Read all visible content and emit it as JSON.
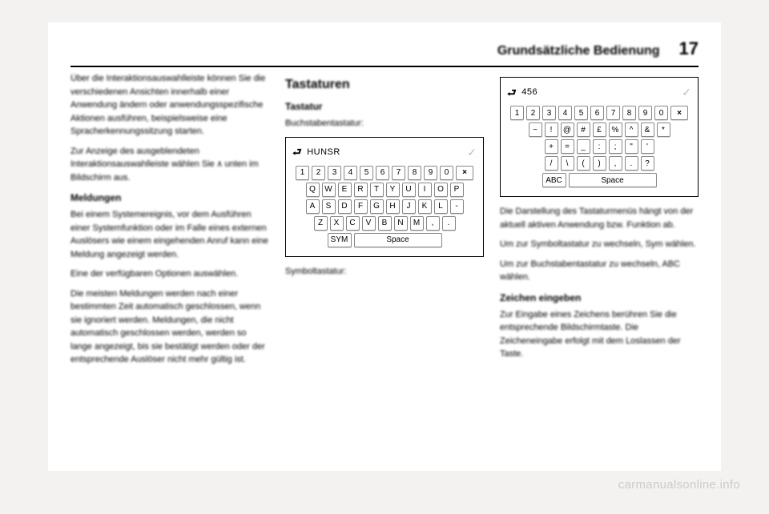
{
  "header": {
    "section_title": "Grundsätzliche Bedienung",
    "page_number": "17"
  },
  "col1": {
    "p1": "Über die Interaktionsauswahlleiste können Sie die verschiedenen Ansichten innerhalb einer Anwendung ändern oder anwendungsspezifische Aktionen ausführen, beispielsweise eine Spracherkennungssitzung starten.",
    "p2_a": "Zur Anzeige des ausgeblendeten Interaktionsauswahlleiste wählen Sie ",
    "p2_caret": "∧",
    "p2_b": " unten im Bildschirm aus.",
    "h_meldungen": "Meldungen",
    "p3": "Bei einem Systemereignis, vor dem Ausführen einer Systemfunktion oder im Falle eines externen Auslösers wie einem eingehenden Anruf kann eine Meldung angezeigt werden.",
    "p4": "Eine der verfügbaren Optionen auswählen.",
    "p5": "Die meisten Meldungen werden nach einer bestimmten Zeit automatisch geschlossen, wenn sie ignoriert werden. Meldungen, die nicht automatisch geschlossen werden, werden so lange angezeigt, bis sie bestätigt werden oder der entsprechende Auslöser nicht mehr gültig ist."
  },
  "col2": {
    "h_tastaturen": "Tastaturen",
    "h_tastatur": "Tastatur",
    "label_buchstaben": "Buchstabentastatur:",
    "label_symbol": "Symboltastatur:",
    "kb_letters": {
      "field": "HUNSR",
      "row_nums": [
        "1",
        "2",
        "3",
        "4",
        "5",
        "6",
        "7",
        "8",
        "9",
        "0"
      ],
      "bksp": "×",
      "row_q": [
        "Q",
        "W",
        "E",
        "R",
        "T",
        "Y",
        "U",
        "I",
        "O",
        "P"
      ],
      "row_a": [
        "A",
        "S",
        "D",
        "F",
        "G",
        "H",
        "J",
        "K",
        "L",
        "-"
      ],
      "row_z": [
        "Z",
        "X",
        "C",
        "V",
        "B",
        "N",
        "M",
        ",",
        "."
      ],
      "sym_key": "SYM",
      "space_key": "Space"
    }
  },
  "col3": {
    "kb_sym": {
      "field": "456",
      "row_nums": [
        "1",
        "2",
        "3",
        "4",
        "5",
        "6",
        "7",
        "8",
        "9",
        "0"
      ],
      "bksp": "×",
      "row2": [
        "~",
        "!",
        "@",
        "#",
        "£",
        "%",
        "^",
        "&",
        "*"
      ],
      "row3": [
        "+",
        "=",
        "_",
        ":",
        ";",
        "\"",
        "'"
      ],
      "row4": [
        "/",
        "\\",
        "(",
        ")",
        ",",
        ".",
        "?"
      ],
      "abc_key": "ABC",
      "space_key": "Space"
    },
    "p1": "Die Darstellung des Tastaturmenüs hängt von der aktuell aktiven Anwendung bzw. Funktion ab.",
    "p2": "Um zur Symboltastatur zu wechseln, Sym wählen.",
    "p3": "Um zur Buchstabentastatur zu wechseln, ABC wählen.",
    "h_zeichen": "Zeichen eingeben",
    "p4": "Zur Eingabe eines Zeichens berühren Sie die entsprechende Bildschirmtaste. Die Zeicheneingabe erfolgt mit dem Loslassen der Taste."
  },
  "watermark": "carmanualsonline.info"
}
